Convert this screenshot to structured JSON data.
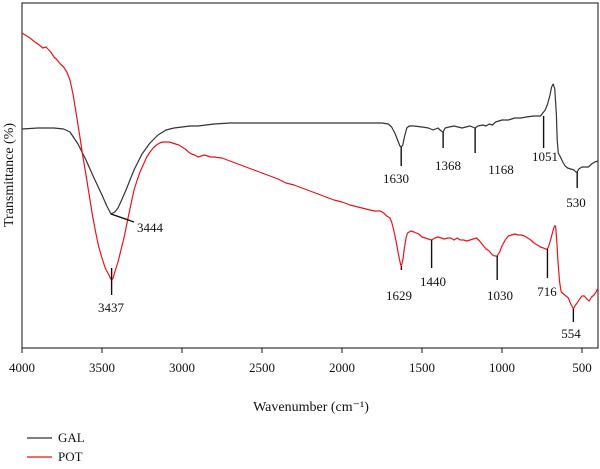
{
  "chart_data": {
    "type": "line",
    "xlabel": "Wavenumber (cm⁻¹)",
    "ylabel": "Transmittance (%)",
    "xlim": [
      4000,
      400
    ],
    "x_reversed": true,
    "x_ticks": [
      4000,
      3500,
      3000,
      2500,
      2000,
      1500,
      1000,
      500
    ],
    "y_ticks_shown": false,
    "grid": false,
    "legend_position": "bottom-left",
    "series": [
      {
        "name": "GAL",
        "color": "#333333",
        "points": [
          [
            4000,
            129
          ],
          [
            3900,
            128
          ],
          [
            3800,
            128
          ],
          [
            3740,
            129
          ],
          [
            3700,
            132
          ],
          [
            3650,
            144
          ],
          [
            3600,
            160
          ],
          [
            3550,
            178
          ],
          [
            3500,
            195
          ],
          [
            3470,
            206
          ],
          [
            3444,
            214
          ],
          [
            3420,
            212
          ],
          [
            3400,
            208
          ],
          [
            3380,
            201
          ],
          [
            3350,
            190
          ],
          [
            3300,
            170
          ],
          [
            3250,
            154
          ],
          [
            3200,
            143
          ],
          [
            3150,
            135
          ],
          [
            3100,
            130
          ],
          [
            3050,
            128
          ],
          [
            3000,
            127
          ],
          [
            2950,
            126
          ],
          [
            2900,
            126
          ],
          [
            2800,
            124
          ],
          [
            2700,
            123
          ],
          [
            2600,
            123
          ],
          [
            2500,
            123
          ],
          [
            2400,
            123
          ],
          [
            2300,
            123
          ],
          [
            2200,
            123
          ],
          [
            2100,
            123
          ],
          [
            2000,
            123
          ],
          [
            1900,
            123
          ],
          [
            1800,
            123
          ],
          [
            1750,
            123
          ],
          [
            1710,
            124
          ],
          [
            1690,
            127
          ],
          [
            1670,
            133
          ],
          [
            1650,
            141
          ],
          [
            1638,
            146
          ],
          [
            1630,
            147
          ],
          [
            1620,
            145
          ],
          [
            1610,
            137
          ],
          [
            1595,
            128
          ],
          [
            1580,
            126
          ],
          [
            1550,
            126
          ],
          [
            1500,
            127
          ],
          [
            1460,
            128
          ],
          [
            1430,
            130
          ],
          [
            1400,
            128
          ],
          [
            1380,
            131
          ],
          [
            1368,
            132
          ],
          [
            1355,
            128
          ],
          [
            1330,
            127
          ],
          [
            1300,
            126
          ],
          [
            1250,
            128
          ],
          [
            1200,
            126
          ],
          [
            1168,
            128
          ],
          [
            1150,
            126
          ],
          [
            1120,
            125
          ],
          [
            1100,
            126
          ],
          [
            1080,
            124
          ],
          [
            1060,
            125
          ],
          [
            1040,
            122
          ],
          [
            1000,
            120
          ],
          [
            960,
            120
          ],
          [
            920,
            118
          ],
          [
            880,
            118
          ],
          [
            850,
            117
          ],
          [
            800,
            116
          ],
          [
            760,
            116
          ],
          [
            730,
            110
          ],
          [
            715,
            104
          ],
          [
            700,
            95
          ],
          [
            690,
            87
          ],
          [
            680,
            84
          ],
          [
            670,
            89
          ],
          [
            660,
            115
          ],
          [
            655,
            140
          ],
          [
            648,
            153
          ],
          [
            635,
            157
          ],
          [
            620,
            162
          ],
          [
            605,
            166
          ],
          [
            590,
            168
          ],
          [
            570,
            169
          ],
          [
            550,
            170
          ],
          [
            538,
            172
          ],
          [
            530,
            172
          ],
          [
            520,
            169
          ],
          [
            500,
            167
          ],
          [
            480,
            167
          ],
          [
            460,
            167
          ],
          [
            440,
            164
          ],
          [
            420,
            162
          ],
          [
            400,
            161
          ]
        ]
      },
      {
        "name": "POT",
        "color": "#e8141c",
        "points": [
          [
            4000,
            33
          ],
          [
            3980,
            35
          ],
          [
            3950,
            38
          ],
          [
            3920,
            42
          ],
          [
            3900,
            44
          ],
          [
            3870,
            48
          ],
          [
            3850,
            47
          ],
          [
            3820,
            52
          ],
          [
            3800,
            57
          ],
          [
            3780,
            60
          ],
          [
            3760,
            64
          ],
          [
            3740,
            67
          ],
          [
            3720,
            72
          ],
          [
            3700,
            80
          ],
          [
            3680,
            95
          ],
          [
            3660,
            115
          ],
          [
            3640,
            135
          ],
          [
            3620,
            156
          ],
          [
            3600,
            175
          ],
          [
            3580,
            195
          ],
          [
            3560,
            215
          ],
          [
            3540,
            232
          ],
          [
            3520,
            247
          ],
          [
            3500,
            258
          ],
          [
            3480,
            268
          ],
          [
            3460,
            274
          ],
          [
            3448,
            278
          ],
          [
            3440,
            280
          ],
          [
            3430,
            278
          ],
          [
            3420,
            272
          ],
          [
            3400,
            262
          ],
          [
            3380,
            249
          ],
          [
            3360,
            236
          ],
          [
            3340,
            220
          ],
          [
            3320,
            205
          ],
          [
            3300,
            190
          ],
          [
            3280,
            180
          ],
          [
            3260,
            171
          ],
          [
            3240,
            164
          ],
          [
            3220,
            157
          ],
          [
            3200,
            152
          ],
          [
            3180,
            148
          ],
          [
            3160,
            145
          ],
          [
            3140,
            143
          ],
          [
            3120,
            142
          ],
          [
            3100,
            142
          ],
          [
            3080,
            142
          ],
          [
            3060,
            143
          ],
          [
            3040,
            144
          ],
          [
            3020,
            145
          ],
          [
            3000,
            147
          ],
          [
            2980,
            149
          ],
          [
            2960,
            152
          ],
          [
            2940,
            154
          ],
          [
            2920,
            155
          ],
          [
            2900,
            157
          ],
          [
            2880,
            156
          ],
          [
            2860,
            155
          ],
          [
            2840,
            156
          ],
          [
            2820,
            157
          ],
          [
            2800,
            157
          ],
          [
            2750,
            158
          ],
          [
            2700,
            161
          ],
          [
            2650,
            164
          ],
          [
            2600,
            167
          ],
          [
            2550,
            170
          ],
          [
            2500,
            173
          ],
          [
            2450,
            176
          ],
          [
            2400,
            179
          ],
          [
            2350,
            183
          ],
          [
            2300,
            185
          ],
          [
            2250,
            188
          ],
          [
            2200,
            191
          ],
          [
            2150,
            194
          ],
          [
            2100,
            197
          ],
          [
            2050,
            200
          ],
          [
            2000,
            202
          ],
          [
            1950,
            205
          ],
          [
            1900,
            207
          ],
          [
            1850,
            209
          ],
          [
            1800,
            211
          ],
          [
            1760,
            211
          ],
          [
            1740,
            213
          ],
          [
            1720,
            216
          ],
          [
            1700,
            218
          ],
          [
            1690,
            222
          ],
          [
            1680,
            228
          ],
          [
            1670,
            235
          ],
          [
            1660,
            243
          ],
          [
            1650,
            252
          ],
          [
            1640,
            260
          ],
          [
            1633,
            265
          ],
          [
            1629,
            266
          ],
          [
            1620,
            260
          ],
          [
            1610,
            248
          ],
          [
            1600,
            238
          ],
          [
            1590,
            233
          ],
          [
            1570,
            231
          ],
          [
            1550,
            232
          ],
          [
            1520,
            234
          ],
          [
            1500,
            237
          ],
          [
            1480,
            238
          ],
          [
            1460,
            239
          ],
          [
            1440,
            240
          ],
          [
            1420,
            238
          ],
          [
            1400,
            237
          ],
          [
            1380,
            238
          ],
          [
            1360,
            239
          ],
          [
            1340,
            238
          ],
          [
            1320,
            238
          ],
          [
            1300,
            240
          ],
          [
            1280,
            238
          ],
          [
            1260,
            240
          ],
          [
            1240,
            240
          ],
          [
            1220,
            241
          ],
          [
            1200,
            240
          ],
          [
            1180,
            239
          ],
          [
            1160,
            238
          ],
          [
            1140,
            241
          ],
          [
            1120,
            245
          ],
          [
            1100,
            249
          ],
          [
            1080,
            251
          ],
          [
            1060,
            255
          ],
          [
            1045,
            256
          ],
          [
            1030,
            256
          ],
          [
            1015,
            252
          ],
          [
            1000,
            246
          ],
          [
            980,
            240
          ],
          [
            960,
            236
          ],
          [
            940,
            235
          ],
          [
            920,
            234
          ],
          [
            900,
            235
          ],
          [
            880,
            235
          ],
          [
            860,
            236
          ],
          [
            840,
            238
          ],
          [
            820,
            240
          ],
          [
            800,
            243
          ],
          [
            780,
            245
          ],
          [
            760,
            247
          ],
          [
            740,
            248
          ],
          [
            730,
            249
          ],
          [
            720,
            249
          ],
          [
            716,
            249
          ],
          [
            710,
            247
          ],
          [
            700,
            242
          ],
          [
            690,
            236
          ],
          [
            680,
            230
          ],
          [
            672,
            226
          ],
          [
            665,
            226
          ],
          [
            658,
            240
          ],
          [
            650,
            262
          ],
          [
            640,
            282
          ],
          [
            630,
            292
          ],
          [
            615,
            294
          ],
          [
            600,
            296
          ],
          [
            585,
            298
          ],
          [
            570,
            304
          ],
          [
            560,
            307
          ],
          [
            554,
            309
          ],
          [
            545,
            306
          ],
          [
            530,
            303
          ],
          [
            515,
            299
          ],
          [
            500,
            296
          ],
          [
            485,
            296
          ],
          [
            470,
            299
          ],
          [
            455,
            301
          ],
          [
            440,
            297
          ],
          [
            425,
            295
          ],
          [
            412,
            292
          ],
          [
            400,
            288
          ]
        ]
      }
    ],
    "annotations": [
      {
        "text": "3444",
        "series": "GAL",
        "x": 3444
      },
      {
        "text": "1630",
        "series": "GAL",
        "x": 1630
      },
      {
        "text": "1368",
        "series": "GAL",
        "x": 1368
      },
      {
        "text": "1168",
        "series": "GAL",
        "x": 1168
      },
      {
        "text": "1051",
        "series": "GAL",
        "x": 740
      },
      {
        "text": "530",
        "series": "GAL",
        "x": 530
      },
      {
        "text": "3437",
        "series": "POT",
        "x": 3440
      },
      {
        "text": "1629",
        "series": "POT",
        "x": 1629
      },
      {
        "text": "1440",
        "series": "POT",
        "x": 1440
      },
      {
        "text": "1030",
        "series": "POT",
        "x": 1030
      },
      {
        "text": "716",
        "series": "POT",
        "x": 716
      },
      {
        "text": "554",
        "series": "POT",
        "x": 554
      }
    ]
  }
}
